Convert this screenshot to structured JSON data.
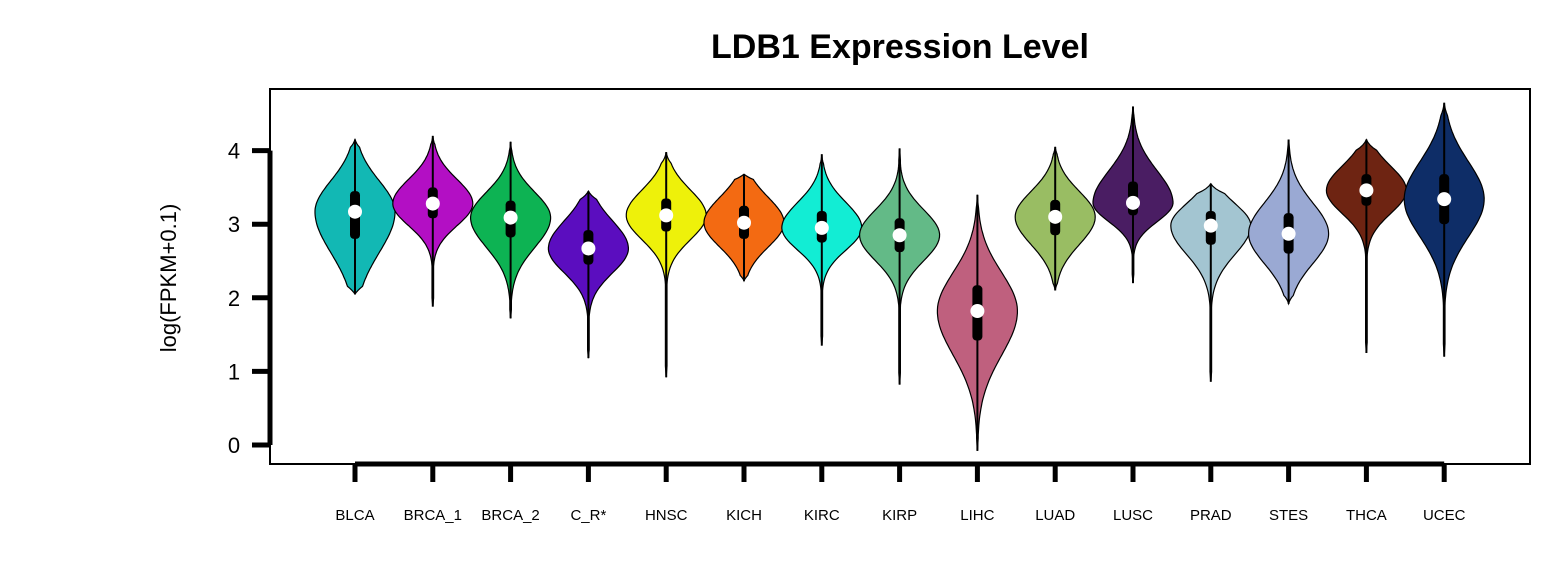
{
  "chart_data": {
    "type": "violin",
    "title": "LDB1 Expression Level",
    "xlabel": "",
    "ylabel": "log(FPKM+0.1)",
    "ylim": [
      -0.3,
      4.8
    ],
    "yticks": [
      0,
      1,
      2,
      3,
      4
    ],
    "grid": false,
    "legend": "none",
    "categories": [
      {
        "name": "BLCA",
        "color": "#12b8b4",
        "min": 2.05,
        "max": 4.15,
        "q1": 2.8,
        "median": 3.17,
        "q3": 3.45,
        "whisker_low": 2.05,
        "whisker_high": 4.15
      },
      {
        "name": "BRCA_1",
        "color": "#b30fc4",
        "min": 1.88,
        "max": 4.2,
        "q1": 3.08,
        "median": 3.28,
        "q3": 3.5,
        "whisker_low": 1.88,
        "whisker_high": 4.2
      },
      {
        "name": "BRCA_2",
        "color": "#0db353",
        "min": 1.72,
        "max": 4.12,
        "q1": 2.82,
        "median": 3.09,
        "q3": 3.32,
        "whisker_low": 1.72,
        "whisker_high": 4.12
      },
      {
        "name": "C_R*",
        "color": "#5b0dbf",
        "min": 1.18,
        "max": 3.45,
        "q1": 2.45,
        "median": 2.67,
        "q3": 2.92,
        "whisker_low": 1.18,
        "whisker_high": 3.45
      },
      {
        "name": "HNSC",
        "color": "#eef10a",
        "min": 0.92,
        "max": 3.98,
        "q1": 2.9,
        "median": 3.12,
        "q3": 3.35,
        "whisker_low": 0.92,
        "whisker_high": 3.98
      },
      {
        "name": "KICH",
        "color": "#f36a12",
        "min": 2.23,
        "max": 3.68,
        "q1": 2.8,
        "median": 3.02,
        "q3": 3.25,
        "whisker_low": 2.23,
        "whisker_high": 3.68
      },
      {
        "name": "KIRC",
        "color": "#12edd4",
        "min": 1.35,
        "max": 3.95,
        "q1": 2.75,
        "median": 2.95,
        "q3": 3.18,
        "whisker_low": 1.35,
        "whisker_high": 3.95
      },
      {
        "name": "KIRP",
        "color": "#63ba87",
        "min": 0.82,
        "max": 4.03,
        "q1": 2.62,
        "median": 2.85,
        "q3": 3.08,
        "whisker_low": 0.82,
        "whisker_high": 4.03
      },
      {
        "name": "LIHC",
        "color": "#bf607e",
        "min": -0.08,
        "max": 3.4,
        "q1": 1.42,
        "median": 1.82,
        "q3": 2.17,
        "whisker_low": -0.08,
        "whisker_high": 3.4
      },
      {
        "name": "LUAD",
        "color": "#99bd63",
        "min": 2.1,
        "max": 4.05,
        "q1": 2.85,
        "median": 3.1,
        "q3": 3.33,
        "whisker_low": 2.1,
        "whisker_high": 4.05
      },
      {
        "name": "LUSC",
        "color": "#4a1d63",
        "min": 2.2,
        "max": 4.6,
        "q1": 3.12,
        "median": 3.29,
        "q3": 3.58,
        "whisker_low": 2.2,
        "whisker_high": 4.6
      },
      {
        "name": "PRAD",
        "color": "#a3c5d1",
        "min": 0.86,
        "max": 3.55,
        "q1": 2.72,
        "median": 2.98,
        "q3": 3.18,
        "whisker_low": 0.86,
        "whisker_high": 3.55
      },
      {
        "name": "STES",
        "color": "#9aa9d3",
        "min": 1.92,
        "max": 4.15,
        "q1": 2.6,
        "median": 2.87,
        "q3": 3.15,
        "whisker_low": 1.92,
        "whisker_high": 4.15
      },
      {
        "name": "THCA",
        "color": "#6e2412",
        "min": 1.25,
        "max": 4.15,
        "q1": 3.25,
        "median": 3.46,
        "q3": 3.68,
        "whisker_low": 1.25,
        "whisker_high": 4.15
      },
      {
        "name": "UCEC",
        "color": "#0e2d67",
        "min": 1.2,
        "max": 4.65,
        "q1": 3.0,
        "median": 3.34,
        "q3": 3.68,
        "whisker_low": 1.2,
        "whisker_high": 4.65
      }
    ]
  }
}
